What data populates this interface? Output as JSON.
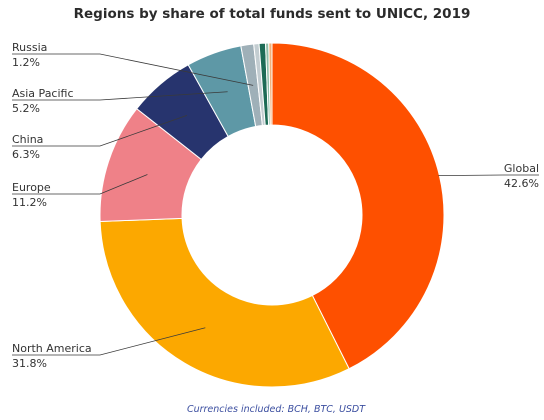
{
  "chart_data": {
    "type": "pie",
    "title": "Regions by share of total funds sent to UNICC, 2019",
    "footnote": "Currencies included: BCH, BTC, USDT",
    "slices": [
      {
        "key": "global",
        "label": "Global",
        "value_label": "42.6%",
        "value": 42.6,
        "color": "#fe5000"
      },
      {
        "key": "north_america",
        "label": "North America",
        "value_label": "31.8%",
        "value": 31.8,
        "color": "#fca800"
      },
      {
        "key": "europe",
        "label": "Europe",
        "value_label": "11.2%",
        "value": 11.2,
        "color": "#ef8188"
      },
      {
        "key": "china",
        "label": "China",
        "value_label": "6.3%",
        "value": 6.3,
        "color": "#27346e"
      },
      {
        "key": "asia_pacific",
        "label": "Asia Pacific",
        "value_label": "5.2%",
        "value": 5.2,
        "color": "#5e98a6"
      },
      {
        "key": "russia",
        "label": "Russia",
        "value_label": "1.2%",
        "value": 1.2,
        "color": "#9fb0b8"
      },
      {
        "key": "other_1",
        "label": "",
        "value_label": "",
        "value": 0.5,
        "color": "#c3cdd1"
      },
      {
        "key": "other_2",
        "label": "",
        "value_label": "",
        "value": 0.6,
        "color": "#1d6b55"
      },
      {
        "key": "other_3",
        "label": "",
        "value_label": "",
        "value": 0.3,
        "color": "#8fbfa8"
      },
      {
        "key": "other_4",
        "label": "",
        "value_label": "",
        "value": 0.3,
        "color": "#f2b07a"
      }
    ]
  }
}
